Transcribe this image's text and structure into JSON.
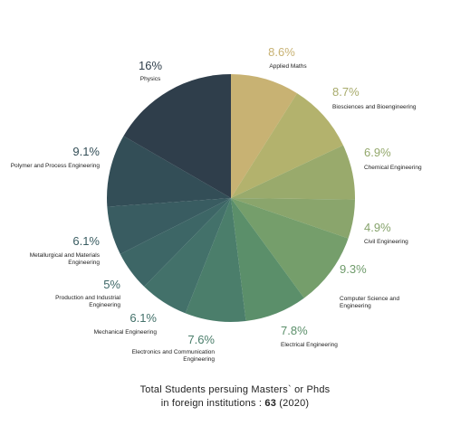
{
  "chart_data": {
    "type": "pie",
    "slices": [
      {
        "label": "Applied Maths",
        "value": 8.6,
        "display": "8.6%",
        "color": "#c8b273",
        "pct_color": "#c8b273"
      },
      {
        "label": "Biosciences and Bioengineering",
        "value": 8.7,
        "display": "8.7%",
        "color": "#b3b26d",
        "pct_color": "#a8ab6c"
      },
      {
        "label": "Chemical Engineering",
        "value": 6.9,
        "display": "6.9%",
        "color": "#99aa6c",
        "pct_color": "#94a86c"
      },
      {
        "label": "Civil Engineering",
        "value": 4.9,
        "display": "4.9%",
        "color": "#8aa56c",
        "pct_color": "#86a36c"
      },
      {
        "label": "Computer Science and Engineering",
        "value": 9.3,
        "display": "9.3%",
        "color": "#759e6b",
        "pct_color": "#6f9b6b"
      },
      {
        "label": "Electrical Engineering",
        "value": 7.8,
        "display": "7.8%",
        "color": "#5b8f6a",
        "pct_color": "#5b8f6a"
      },
      {
        "label": "Electronics and Communication Engineering",
        "value": 7.6,
        "display": "7.6%",
        "color": "#4b7e6b",
        "pct_color": "#4b7e6b"
      },
      {
        "label": "Mechanical Engineering",
        "value": 6.1,
        "display": "6.1%",
        "color": "#43716a",
        "pct_color": "#43716a"
      },
      {
        "label": "Production and Industrial Engineering",
        "value": 5,
        "display": "5%",
        "color": "#3d6666",
        "pct_color": "#3d6666"
      },
      {
        "label": "Metallurgical and Materials Engineering",
        "value": 6.1,
        "display": "6.1%",
        "color": "#395c61",
        "pct_color": "#395c61"
      },
      {
        "label": "Polymer and Process Engineering",
        "value": 9.1,
        "display": "9.1%",
        "color": "#334e57",
        "pct_color": "#334e57"
      },
      {
        "label": "Physics",
        "value": 16,
        "display": "16%",
        "color": "#2f3e4b",
        "pct_color": "#2f3e4b"
      }
    ],
    "start_angle_deg": 0,
    "direction": "clockwise"
  },
  "footer": {
    "line1": "Total Students persuing Masters` or Phds",
    "line2_prefix": "in foreign institutions : ",
    "line2_count": "63",
    "line2_suffix": " (2020)"
  }
}
